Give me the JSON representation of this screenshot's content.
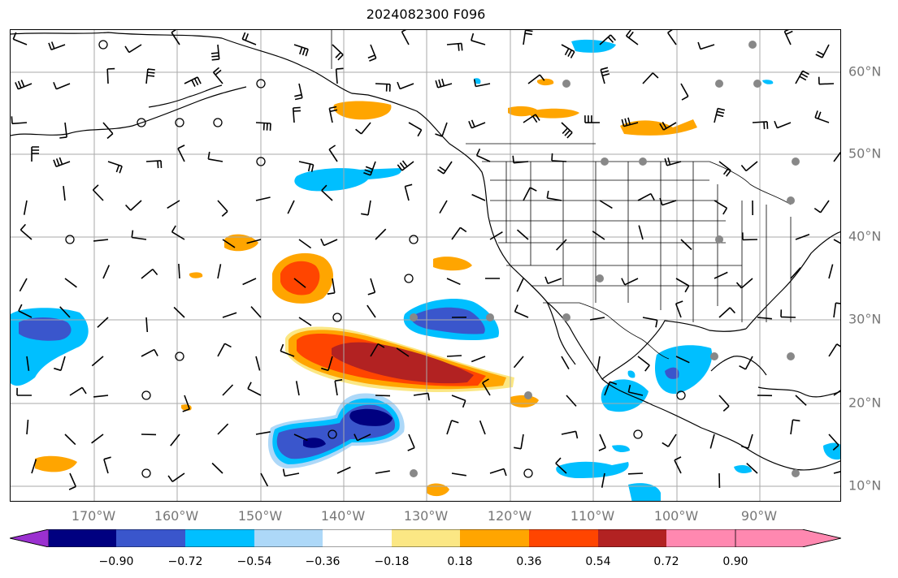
{
  "title": "2024082300 F096",
  "longitude_labels": [
    "170°W",
    "160°W",
    "150°W",
    "140°W",
    "130°W",
    "120°W",
    "110°W",
    "100°W",
    "90°W"
  ],
  "latitude_labels": [
    "60°N",
    "50°N",
    "40°N",
    "30°N",
    "20°N",
    "10°N"
  ],
  "colorbar": {
    "tick_labels": [
      "−0.90",
      "−0.72",
      "−0.54",
      "−0.36",
      "−0.18",
      "0.18",
      "0.36",
      "0.54",
      "0.72",
      "0.90"
    ],
    "colors": [
      "#9b30d0",
      "#000080",
      "#3a56cc",
      "#00bfff",
      "#add8f8",
      "#ffffff",
      "#fbe784",
      "#ffa500",
      "#ff4500",
      "#b22222",
      "#ff88b0"
    ]
  }
}
